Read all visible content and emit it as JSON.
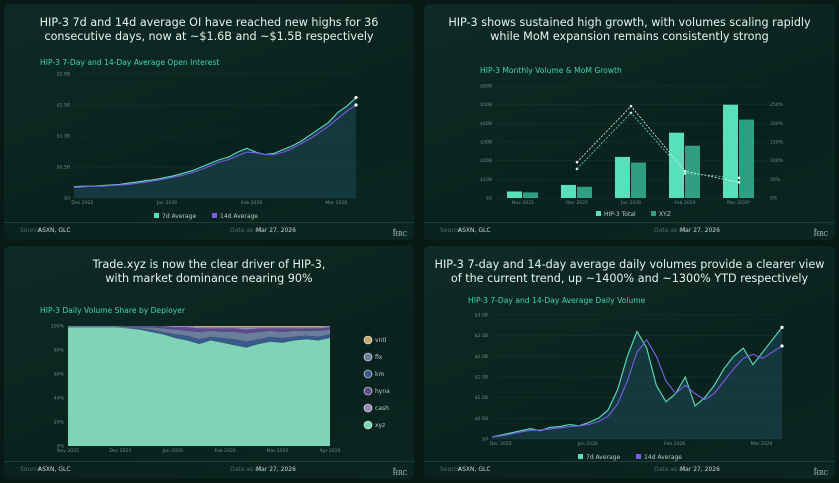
{
  "colors": {
    "teal": "#58e0bc",
    "purple": "#7b5ce6",
    "xyz": "#7fd4b6",
    "felix": "#6a7d9a",
    "km": "#3b5a8c",
    "hyna": "#5e4a8e",
    "cash": "#9a8ab8",
    "vntl": "#c4a86b"
  },
  "panels": [
    {
      "title_line1": "HIP-3 7d and 14d average OI have reached new highs for 36",
      "title_line2": "consecutive days, now at ~$1.6B and ~$1.5B respectively",
      "chart_title": "HIP-3 7-Day and 14-Day Average Open Interest",
      "footer": {
        "source_label": "Source",
        "source": "ASXN, GLC",
        "date_label": "Data as of",
        "date": "Mar 27, 2026"
      },
      "brand": "HRC",
      "brand_sup": "Φ"
    },
    {
      "title_line1": "HIP-3 shows sustained high growth, with volumes scaling rapidly",
      "title_line2": "while MoM expansion remains consistently strong",
      "chart_title": "HIP-3 Monthly Volume & MoM Growth",
      "footer": {
        "source_label": "Source",
        "source": "ASXN, GLC",
        "date_label": "Data as of",
        "date": "Mar 27, 2026"
      },
      "brand": "HRC",
      "brand_sup": "Φ"
    },
    {
      "title_line1": "Trade.xyz is now the clear driver of HIP-3,",
      "title_line2": "with market dominance nearing 90%",
      "chart_title": "HIP-3 Daily Volume Share by Deployer",
      "footer": {
        "source_label": "Source",
        "source": "ASXN, GLC",
        "date_label": "Data as of",
        "date": "Mar 27, 2026"
      },
      "brand": "HRC",
      "brand_sup": "Φ"
    },
    {
      "title_line1": "HIP-3 7-day and 14-day average daily volumes provide a clearer view",
      "title_line2": "of the current trend, up ~1400% and ~1300% YTD respectively",
      "chart_title": "HIP-3 7-Day and 14-Day Average Daily Volume",
      "footer": {
        "source_label": "Source",
        "source": "ASXN, GLC",
        "date_label": "Data as of",
        "date": "Mar 27, 2026"
      },
      "brand": "HRC",
      "brand_sup": "Φ"
    }
  ],
  "chart_data": [
    {
      "type": "line",
      "title": "HIP-3 7-Day and 14-Day Average Open Interest",
      "x_ticks": [
        "Dec 2025",
        "Jan 2026",
        "Feb 2026",
        "Mar 2026"
      ],
      "y_ticks": [
        "$0",
        "$0.5B",
        "$1.0B",
        "$1.5B",
        "$2.0B"
      ],
      "ylim": [
        0,
        2.0
      ],
      "legend": [
        "7d Average",
        "14d Average"
      ],
      "series": [
        {
          "name": "7d Average",
          "color": "#58e0bc",
          "values": [
            0.18,
            0.19,
            0.19,
            0.2,
            0.21,
            0.22,
            0.24,
            0.26,
            0.28,
            0.3,
            0.33,
            0.36,
            0.4,
            0.44,
            0.5,
            0.56,
            0.62,
            0.66,
            0.74,
            0.8,
            0.74,
            0.7,
            0.72,
            0.78,
            0.84,
            0.92,
            1.02,
            1.12,
            1.22,
            1.38,
            1.48,
            1.62
          ]
        },
        {
          "name": "14d Average",
          "color": "#7b5ce6",
          "values": [
            0.17,
            0.18,
            0.19,
            0.19,
            0.2,
            0.21,
            0.22,
            0.24,
            0.26,
            0.28,
            0.31,
            0.34,
            0.37,
            0.41,
            0.46,
            0.52,
            0.58,
            0.62,
            0.68,
            0.74,
            0.73,
            0.7,
            0.7,
            0.74,
            0.8,
            0.88,
            0.96,
            1.06,
            1.16,
            1.28,
            1.4,
            1.5
          ]
        }
      ]
    },
    {
      "type": "bar",
      "title": "HIP-3 Monthly Volume & MoM Growth",
      "categories": [
        "Nov 2025",
        "Dec 2025",
        "Jan 2026",
        "Feb 2026",
        "Mar 2026*"
      ],
      "y_ticks": [
        "$0",
        "$10B",
        "$20B",
        "$30B",
        "$40B",
        "$50B",
        "$60B"
      ],
      "y2_ticks": [
        "0%",
        "50%",
        "100%",
        "150%",
        "200%",
        "250%"
      ],
      "ylim": [
        0,
        60
      ],
      "y2lim": [
        0,
        250
      ],
      "legend": [
        "HIP-3 Total",
        "XYZ"
      ],
      "series": [
        {
          "name": "HIP-3 Total",
          "color": "#58e0bc",
          "values": [
            3.5,
            7,
            22,
            35,
            50
          ]
        },
        {
          "name": "XYZ",
          "color": "#2f9e82",
          "values": [
            3,
            6,
            19,
            28,
            42
          ]
        }
      ],
      "mom_growth": [
        {
          "name": "HIP-3 Total",
          "values": [
            null,
            80,
            205,
            60,
            35
          ]
        },
        {
          "name": "XYZ",
          "values": [
            null,
            65,
            190,
            55,
            45
          ]
        }
      ]
    },
    {
      "type": "area",
      "title": "HIP-3 Daily Volume Share by Deployer",
      "x_ticks": [
        "Nov 2025",
        "Dec 2025",
        "Jan 2026",
        "Feb 2026",
        "Mar 2026",
        "Apr 2026"
      ],
      "y_ticks": [
        "0%",
        "20%",
        "40%",
        "60%",
        "80%",
        "100%"
      ],
      "ylim": [
        0,
        100
      ],
      "legend": [
        "vntl",
        "flx",
        "km",
        "hyna",
        "cash",
        "xyz"
      ],
      "series": [
        {
          "name": "xyz",
          "values": [
            99,
            99,
            99,
            99,
            99,
            98,
            97,
            95,
            93,
            90,
            88,
            85,
            88,
            86,
            84,
            82,
            85,
            87,
            86,
            88,
            89,
            88,
            90
          ]
        },
        {
          "name": "km",
          "values": [
            0,
            0,
            0,
            0,
            0,
            0,
            1,
            2,
            2,
            3,
            4,
            4,
            3,
            4,
            5,
            5,
            4,
            4,
            4,
            3,
            3,
            3,
            3
          ]
        },
        {
          "name": "flx",
          "values": [
            1,
            1,
            1,
            1,
            1,
            1,
            1,
            2,
            3,
            4,
            4,
            6,
            5,
            5,
            6,
            7,
            6,
            5,
            5,
            5,
            4,
            5,
            4
          ]
        },
        {
          "name": "hyna",
          "values": [
            0,
            0,
            0,
            0,
            0,
            1,
            1,
            1,
            2,
            2,
            3,
            3,
            2,
            3,
            3,
            3,
            3,
            2,
            3,
            2,
            2,
            2,
            2
          ]
        },
        {
          "name": "cash",
          "values": [
            0,
            0,
            0,
            0,
            0,
            0,
            0,
            0,
            0,
            1,
            1,
            1,
            1,
            1,
            1,
            2,
            1,
            1,
            1,
            1,
            1,
            1,
            1
          ]
        },
        {
          "name": "vntl",
          "values": [
            0,
            0,
            0,
            0,
            0,
            0,
            0,
            0,
            0,
            0,
            0,
            1,
            1,
            1,
            1,
            1,
            1,
            1,
            1,
            1,
            1,
            1,
            0
          ]
        }
      ]
    },
    {
      "type": "line",
      "title": "HIP-3 7-Day and 14-Day Average Daily Volume",
      "x_ticks": [
        "Dec 2025",
        "Jan 2026",
        "Feb 2026",
        "Mar 2026"
      ],
      "y_ticks": [
        "$0",
        "$0.5B",
        "$1.0B",
        "$1.5B",
        "$2.0B",
        "$2.5B",
        "$3.0B"
      ],
      "ylim": [
        0,
        3.0
      ],
      "legend": [
        "7d Average",
        "14d Average"
      ],
      "series": [
        {
          "name": "7d Average",
          "color": "#58e0bc",
          "values": [
            0.05,
            0.1,
            0.15,
            0.2,
            0.25,
            0.2,
            0.28,
            0.3,
            0.35,
            0.32,
            0.4,
            0.5,
            0.7,
            1.2,
            2.0,
            2.6,
            2.2,
            1.3,
            0.9,
            1.1,
            1.5,
            0.8,
            1.0,
            1.3,
            1.7,
            2.0,
            2.2,
            1.8,
            2.1,
            2.4,
            2.7
          ]
        },
        {
          "name": "14d Average",
          "color": "#7b5ce6",
          "values": [
            0.05,
            0.08,
            0.12,
            0.17,
            0.21,
            0.22,
            0.24,
            0.27,
            0.3,
            0.32,
            0.35,
            0.42,
            0.55,
            0.85,
            1.4,
            2.1,
            2.4,
            2.0,
            1.4,
            1.1,
            1.3,
            1.1,
            0.95,
            1.1,
            1.4,
            1.7,
            1.95,
            2.05,
            1.95,
            2.1,
            2.25
          ]
        }
      ]
    }
  ]
}
